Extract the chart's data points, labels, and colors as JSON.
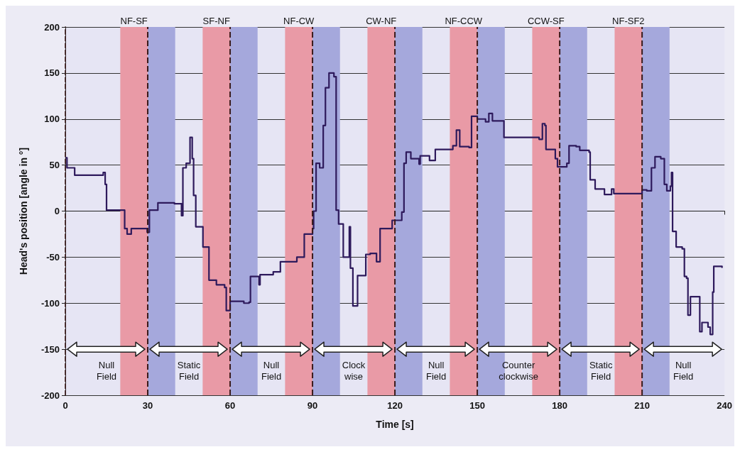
{
  "chart_data": {
    "type": "step",
    "xlabel": "Time [s]",
    "ylabel": "Head's position [angle in °]",
    "xlim": [
      0,
      240
    ],
    "xticks": [
      0,
      30,
      60,
      90,
      120,
      150,
      180,
      210,
      240
    ],
    "ylim": [
      -200,
      200
    ],
    "yticks": [
      -200,
      -150,
      -100,
      -50,
      0,
      50,
      100,
      150,
      200
    ],
    "grid": "y",
    "line_style": "solid",
    "color": "#2e1a5c",
    "x": [
      0.3,
      0.6,
      3.4,
      13.8,
      14.5,
      15,
      20.7,
      21.6,
      22.5,
      24,
      29.8,
      30.6,
      33.7,
      39.7,
      42.3,
      42.8,
      44,
      45.4,
      46.2,
      46.7,
      47.5,
      50.1,
      52.3,
      55,
      58,
      58.6,
      60,
      65,
      66.9,
      67.4,
      70.5,
      70.9,
      75.7,
      78.3,
      84.3,
      87,
      90,
      90.4,
      91.3,
      92.6,
      93.9,
      94.7,
      96,
      97.8,
      98.6,
      99.5,
      101.2,
      102.5,
      103.4,
      103.8,
      104.7,
      106.4,
      109.4,
      111,
      113.3,
      114.6,
      119,
      121.1,
      122.5,
      123.3,
      124.1,
      125.8,
      128.8,
      129.2,
      132.6,
      134.7,
      141.1,
      142.4,
      143.6,
      147,
      147.9,
      150,
      153,
      154.2,
      155.5,
      159.3,
      159.7,
      172.5,
      173.7,
      174.6,
      175,
      178.4,
      179.2,
      182.6,
      183.4,
      186,
      187.3,
      190.7,
      191.1,
      192.9,
      196.3,
      198.9,
      199.7,
      210,
      211.7,
      213.4,
      214.7,
      216.8,
      218.1,
      219,
      220.3,
      220.7,
      221.1,
      222.4,
      224.6,
      225.4,
      226.2,
      226.7,
      227.6,
      230.1,
      231,
      231.8,
      234,
      234.8,
      235.7,
      236.1,
      239.1
    ],
    "values": [
      58,
      47,
      39,
      42,
      29,
      1,
      1,
      -19,
      -25,
      -19,
      -23,
      1,
      9,
      8,
      -5,
      47,
      52,
      80,
      57,
      17,
      -17,
      -39,
      -75,
      -80,
      -83,
      -108,
      -98,
      -100,
      -99,
      -71,
      -80,
      -69,
      -66,
      -55,
      -50,
      -25,
      -19,
      0,
      52,
      47,
      93,
      134,
      150,
      146,
      1,
      -14,
      -50,
      -50,
      -17,
      -62,
      -103,
      -70,
      -47,
      -46,
      -55,
      -19,
      -10,
      -10,
      -1,
      52,
      64,
      57,
      51,
      60,
      55,
      67,
      71,
      88,
      70,
      69,
      103,
      100,
      97,
      106,
      98,
      98,
      80,
      78,
      95,
      93,
      67,
      57,
      48,
      52,
      71,
      70,
      66,
      64,
      34,
      24,
      18,
      24,
      19,
      23,
      22,
      47,
      59,
      57,
      29,
      22,
      27,
      42,
      -22,
      -39,
      -41,
      -71,
      -73,
      -113,
      -93,
      -93,
      -131,
      -121,
      -126,
      -134,
      -88,
      -60,
      -61
    ],
    "bands": [
      {
        "axis": "x",
        "from": 20,
        "to": 30,
        "label": "NF-SF",
        "color": "#e99aa6"
      },
      {
        "axis": "x",
        "from": 30,
        "to": 40,
        "label": null,
        "color": "#a5a8dc"
      },
      {
        "axis": "x",
        "from": 50,
        "to": 60,
        "label": "SF-NF",
        "color": "#e99aa6"
      },
      {
        "axis": "x",
        "from": 60,
        "to": 70,
        "label": null,
        "color": "#a5a8dc"
      },
      {
        "axis": "x",
        "from": 80,
        "to": 90,
        "label": "NF-CW",
        "color": "#e99aa6"
      },
      {
        "axis": "x",
        "from": 90,
        "to": 100,
        "label": null,
        "color": "#a5a8dc"
      },
      {
        "axis": "x",
        "from": 110,
        "to": 120,
        "label": "CW-NF",
        "color": "#e99aa6"
      },
      {
        "axis": "x",
        "from": 120,
        "to": 130,
        "label": null,
        "color": "#a5a8dc"
      },
      {
        "axis": "x",
        "from": 140,
        "to": 150,
        "label": "NF-CCW",
        "color": "#e99aa6"
      },
      {
        "axis": "x",
        "from": 150,
        "to": 160,
        "label": null,
        "color": "#a5a8dc"
      },
      {
        "axis": "x",
        "from": 170,
        "to": 180,
        "label": "CCW-SF",
        "color": "#e99aa6"
      },
      {
        "axis": "x",
        "from": 180,
        "to": 190,
        "label": null,
        "color": "#a5a8dc"
      },
      {
        "axis": "x",
        "from": 200,
        "to": 210,
        "label": "NF-SF2",
        "color": "#e99aa6"
      },
      {
        "axis": "x",
        "from": 210,
        "to": 220,
        "label": null,
        "color": "#a5a8dc"
      }
    ],
    "ref_lines": [
      {
        "axis": "x",
        "value": 30,
        "color": "#3a1a1a",
        "line_style": "dashed"
      },
      {
        "axis": "x",
        "value": 60,
        "color": "#3a1a1a",
        "line_style": "dashed"
      },
      {
        "axis": "x",
        "value": 90,
        "color": "#3a1a1a",
        "line_style": "dashed"
      },
      {
        "axis": "x",
        "value": 120,
        "color": "#3a1a1a",
        "line_style": "dashed"
      },
      {
        "axis": "x",
        "value": 150,
        "color": "#3a1a1a",
        "line_style": "dashed"
      },
      {
        "axis": "x",
        "value": 180,
        "color": "#3a1a1a",
        "line_style": "dashed"
      },
      {
        "axis": "x",
        "value": 210,
        "color": "#3a1a1a",
        "line_style": "dashed"
      }
    ],
    "annotations": [
      "Null\nField",
      "Static\nField",
      "Null\nField",
      "Clock\nwise",
      "Null\nField",
      "Counter\nclockwise",
      "Static\nField",
      "Null\nField"
    ]
  }
}
